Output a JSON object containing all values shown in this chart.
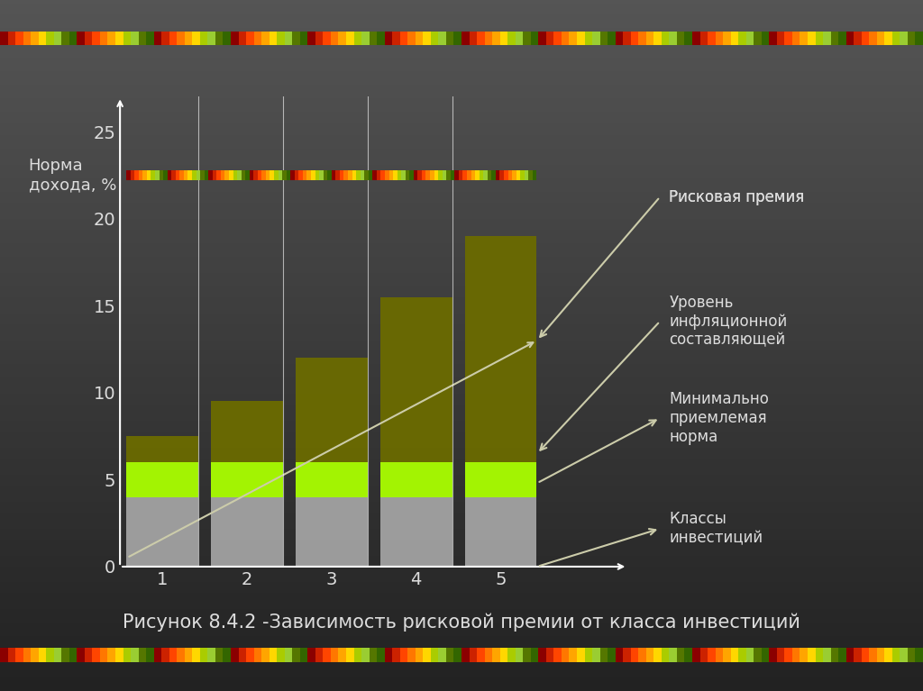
{
  "categories": [
    1,
    2,
    3,
    4,
    5
  ],
  "bar_total_heights": [
    7.5,
    9.5,
    12.0,
    15.5,
    19.0
  ],
  "gray_layer_top": 4.0,
  "lime_layer_top": 6.0,
  "gray_color": "#b0b0b0",
  "lime_color": "#aaff00",
  "olive_color": "#6b6b00",
  "text_color": "#dddddd",
  "title_y_label": "Норма\nдохода, %",
  "x_label": "Классы\nинвестиций",
  "yticks": [
    0,
    5,
    10,
    15,
    20,
    25
  ],
  "ylim": [
    0,
    27
  ],
  "xlim": [
    0.5,
    6.5
  ],
  "annotation1_text": "Рисковая премия",
  "annotation2_text": "Уровень\nинфляционной\nсоставляющей",
  "annotation3_text": "Минимально\nприемлемая\nнорма",
  "annotation4_text": "Классы\nинвестиций",
  "caption": "Рисунок 8.4.2 -Зависимость рисковой премии от класса инвестиций",
  "stripe_y": 22.5,
  "stripe_height": 0.6
}
